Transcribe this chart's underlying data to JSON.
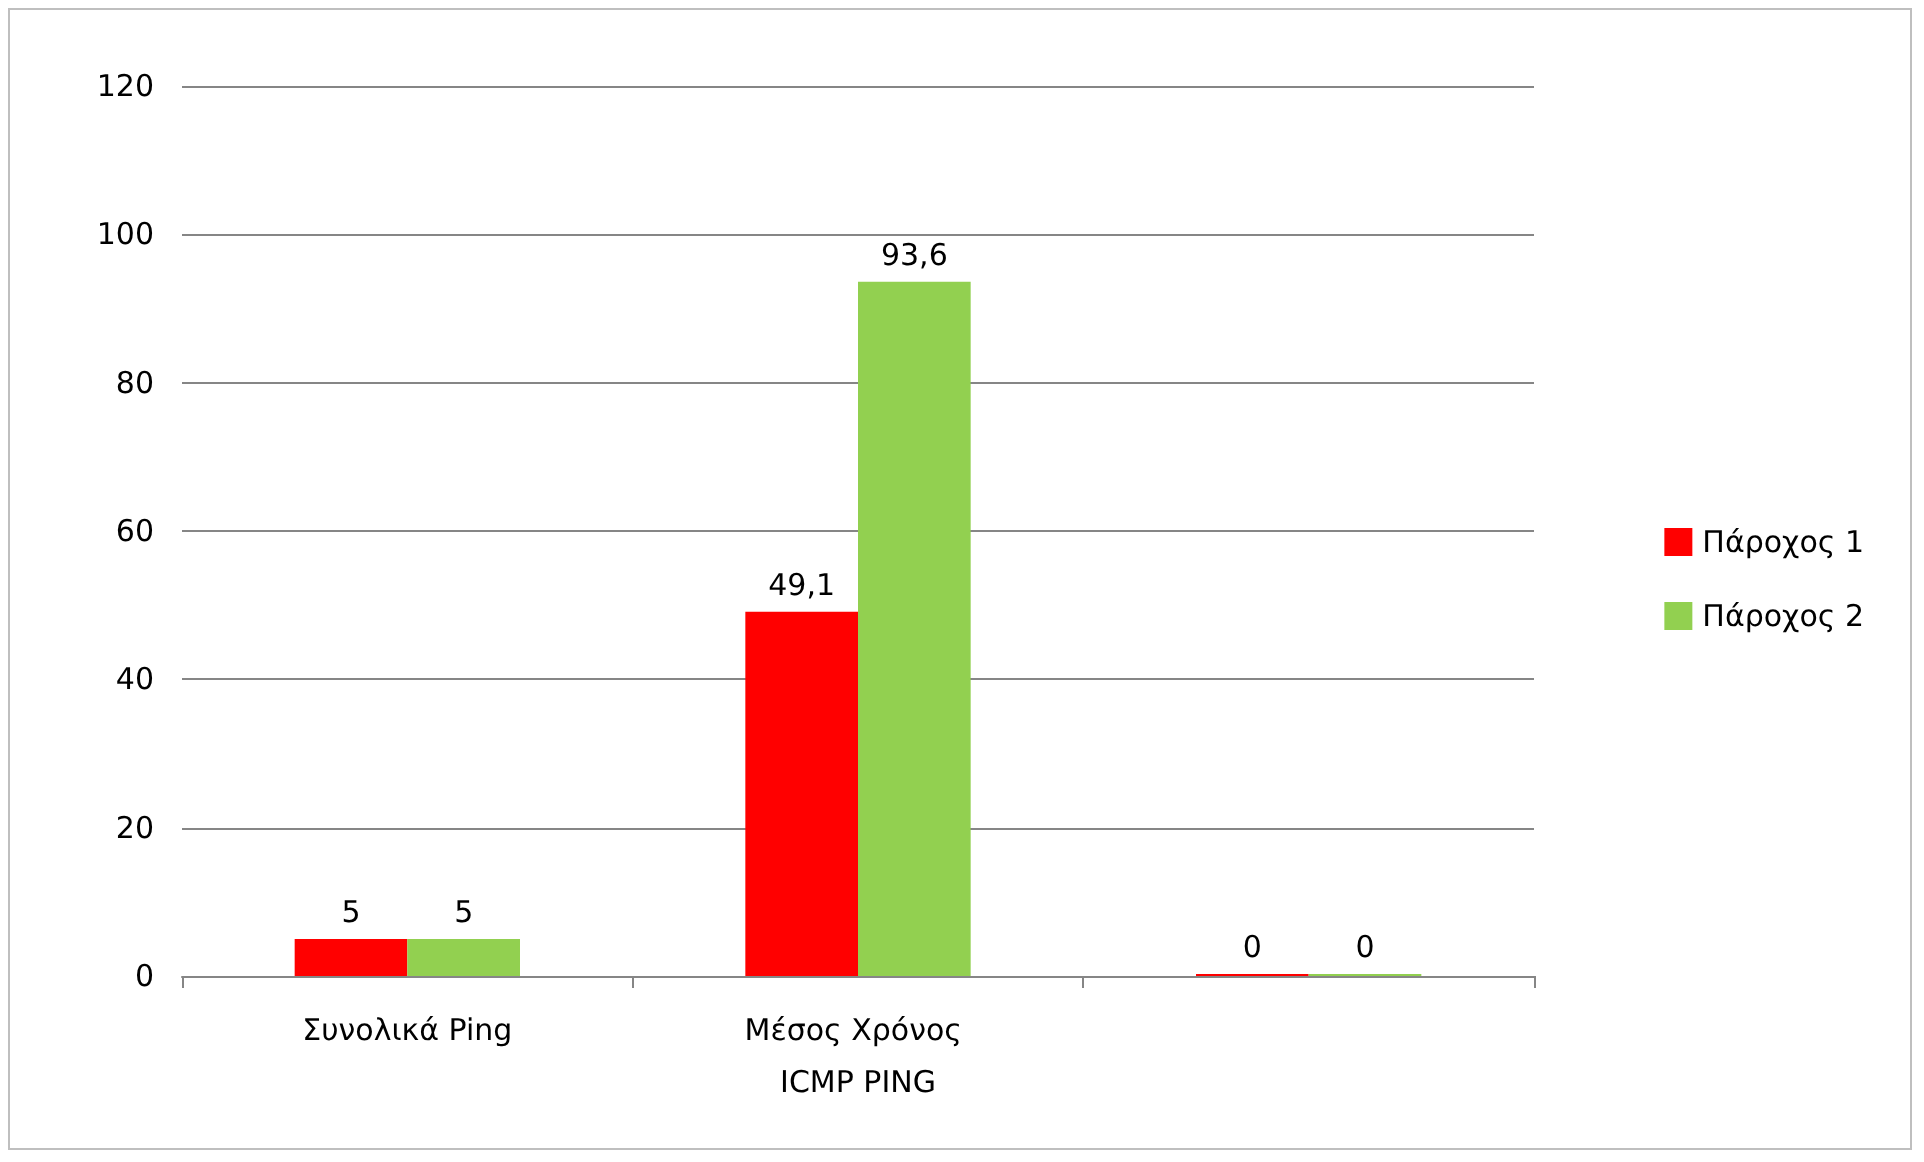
{
  "chart_data": {
    "type": "bar",
    "categories": [
      "Συνολικά Ping",
      "Μέσος Χρόνος ICMP PING",
      null
    ],
    "series": [
      {
        "name": "Πάροχος 1",
        "color": "#ff0000",
        "values": [
          5,
          49.1,
          0
        ],
        "value_labels": [
          "5",
          "49,1",
          "0"
        ]
      },
      {
        "name": "Πάροχος 2",
        "color": "#92d050",
        "values": [
          5,
          93.6,
          0
        ],
        "value_labels": [
          "5",
          "93,6",
          "0"
        ]
      }
    ],
    "ylim": [
      0,
      120
    ],
    "yticks": [
      0,
      20,
      40,
      60,
      80,
      100,
      120
    ],
    "grid": "y",
    "legend": "right"
  }
}
